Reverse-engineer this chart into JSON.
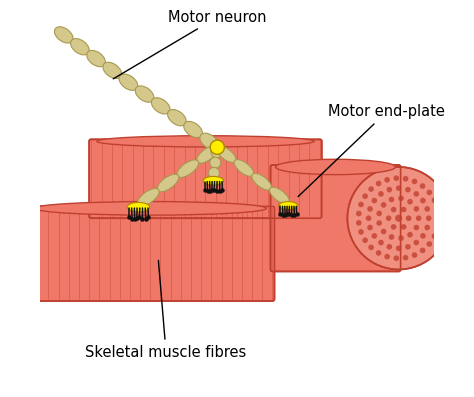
{
  "background_color": "#ffffff",
  "fig_width": 4.74,
  "fig_height": 3.97,
  "dpi": 100,
  "neuron_color": "#d4c98a",
  "neuron_outline": "#a89850",
  "synapse_color": "#ffee00",
  "muscle_fill": "#f07868",
  "muscle_stripe": "#d85848",
  "muscle_outline": "#c04030",
  "muscle_cross_fill": "#f09080",
  "muscle_cross_dots": "#cc5040",
  "end_plate_yellow": "#ffee00",
  "end_plate_black": "#111111",
  "label_motor_neuron": "Motor neuron",
  "label_motor_end_plate": "Motor end-plate",
  "label_skeletal_muscle": "Skeletal muscle fibres",
  "font_size": 10.5
}
